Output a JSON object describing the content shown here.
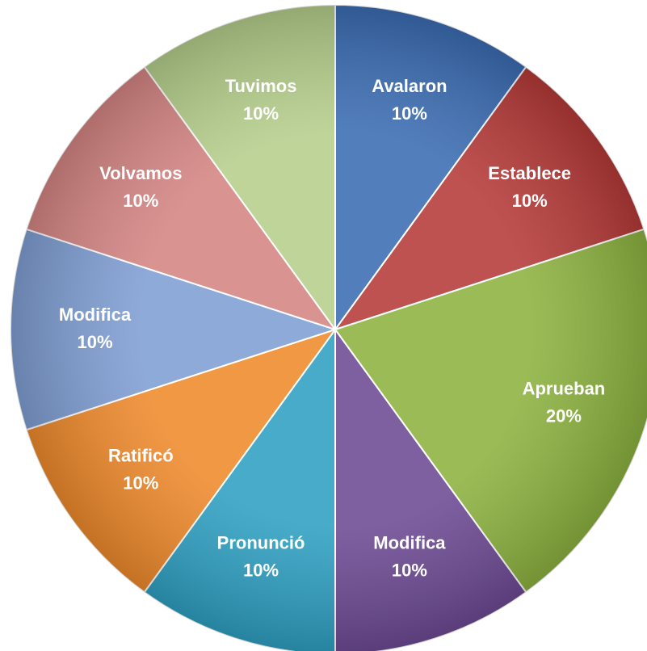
{
  "chart_data": {
    "type": "pie",
    "categories": [
      "Avalaron",
      "Establece",
      "Aprueban",
      "Modifica",
      "Pronunció",
      "Ratificó",
      "Modifica",
      "Volvamos",
      "Tuvimos"
    ],
    "values": [
      10,
      10,
      20,
      10,
      10,
      10,
      10,
      10,
      10
    ],
    "value_labels": [
      "10%",
      "10%",
      "20%",
      "10%",
      "10%",
      "10%",
      "10%",
      "10%",
      "10%"
    ],
    "colors": [
      "#3b6db3",
      "#b53a38",
      "#8cb23f",
      "#6d4a94",
      "#2ea0c2",
      "#ef8a2c",
      "#7f9ed3",
      "#d48583",
      "#b5ce8b"
    ]
  }
}
